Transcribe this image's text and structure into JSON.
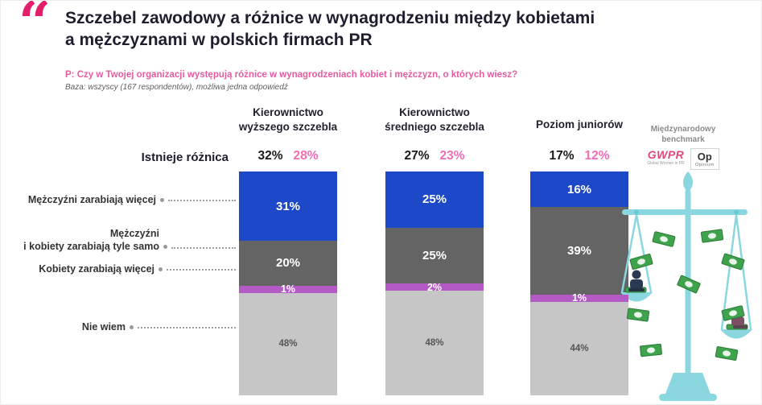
{
  "header": {
    "quote_glyph": "“",
    "title_line1": "Szczebel zawodowy a różnice w wynagrodzeniu między kobietami",
    "title_line2": "a mężczyznami w polskich firmach PR",
    "question": "P: Czy w Twojej organizacji występują różnice w wynagrodzeniach kobiet i mężczyzn, o których wiesz?",
    "base_note": "Baza: wszyscy (167 respondentów), możliwa jedna odpowiedź"
  },
  "row_labels": {
    "difference": "Istnieje różnica",
    "men_more": "Mężczyźni zarabiają więcej",
    "same_line1": "Mężczyźni",
    "same_line2": "i kobiety zarabiają tyle samo",
    "women_more": "Kobiety zarabiają więcej",
    "dont_know": "Nie wiem"
  },
  "benchmark": {
    "label_line1": "Międzynarodowy",
    "label_line2": "benchmark",
    "gwpr": "GWPR",
    "gwpr_sub": "Global Women in PR",
    "opinium_main": "Op",
    "opinium_sub": "Opinium"
  },
  "chart_data": {
    "type": "bar",
    "stacked": true,
    "title": "Szczebel zawodowy a różnice w wynagrodzeniu między kobietami a mężczyznami w polskich firmach PR",
    "categories": [
      "Kierownictwo wyższego szczebla",
      "Kierownictwo średniego szczebla",
      "Poziom juniorów"
    ],
    "series": [
      {
        "name": "Mężczyźni zarabiają więcej",
        "values": [
          31,
          25,
          16
        ]
      },
      {
        "name": "Mężczyźni i kobiety zarabiają tyle samo",
        "values": [
          20,
          25,
          39
        ]
      },
      {
        "name": "Kobiety zarabiają więcej",
        "values": [
          1,
          2,
          1
        ]
      },
      {
        "name": "Nie wiem",
        "values": [
          48,
          48,
          44
        ]
      }
    ],
    "istnieje_roznica": [
      32,
      27,
      17
    ],
    "benchmark_values": [
      28,
      23,
      12
    ],
    "ylim": [
      0,
      100
    ],
    "legend_position": "left-labels",
    "colors": {
      "men_more": "#1d49c8",
      "same": "#646464",
      "women_more": "#b35ac4",
      "dont_know": "#c6c6c6",
      "benchmark_pink": "#ee6eb4",
      "accent_pink": "#e5559d"
    },
    "columns": [
      {
        "label_line1": "Kierownictwo",
        "label_line2": "wyższego szczebla",
        "difference_pct": "32%",
        "benchmark_pct": "28%",
        "segments": {
          "men_more": 31,
          "same": 20,
          "women_more": 1,
          "dont_know": 48
        },
        "segment_labels": {
          "men_more": "31%",
          "same": "20%",
          "women_more": "1%",
          "dont_know": "48%"
        }
      },
      {
        "label_line1": "Kierownictwo",
        "label_line2": "średniego szczebla",
        "difference_pct": "27%",
        "benchmark_pct": "23%",
        "segments": {
          "men_more": 25,
          "same": 25,
          "women_more": 2,
          "dont_know": 48
        },
        "segment_labels": {
          "men_more": "25%",
          "same": "25%",
          "women_more": "2%",
          "dont_know": "48%"
        }
      },
      {
        "label_line1": "Poziom juniorów",
        "label_line2": "",
        "difference_pct": "17%",
        "benchmark_pct": "12%",
        "segments": {
          "men_more": 16,
          "same": 39,
          "women_more": 1,
          "dont_know": 44
        },
        "segment_labels": {
          "men_more": "16%",
          "same": "39%",
          "women_more": "1%",
          "dont_know": "44%"
        }
      }
    ]
  }
}
